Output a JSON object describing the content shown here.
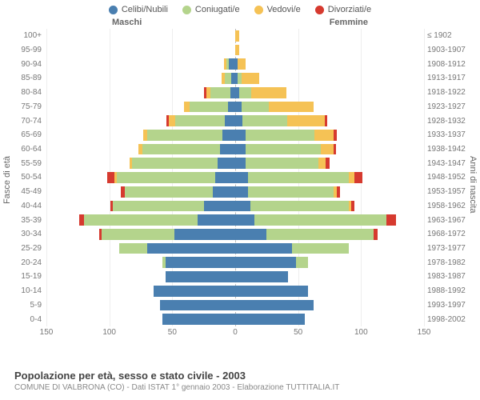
{
  "chart": {
    "type": "population-pyramid",
    "title": "Popolazione per età, sesso e stato civile - 2003",
    "subtitle": "COMUNE DI VALBRONA (CO) - Dati ISTAT 1° gennaio 2003 - Elaborazione TUTTITALIA.IT",
    "legend": [
      {
        "label": "Celibi/Nubili",
        "color": "#4a7fb0"
      },
      {
        "label": "Coniugati/e",
        "color": "#b4d48c"
      },
      {
        "label": "Vedovi/e",
        "color": "#f5c255"
      },
      {
        "label": "Divorziati/e",
        "color": "#d63a2f"
      }
    ],
    "gender_labels": {
      "male": "Maschi",
      "female": "Femmine"
    },
    "y_left_title": "Fasce di età",
    "y_right_title": "Anni di nascita",
    "x_max": 150,
    "x_ticks": [
      150,
      100,
      50,
      0,
      50,
      100,
      150
    ],
    "grid_positions_abs": [
      150,
      100,
      50,
      50,
      100,
      150
    ],
    "background_color": "#ffffff",
    "grid_color": "#eeeeee",
    "axis_text_color": "#777777",
    "title_fontsize": 13,
    "label_fontsize": 10,
    "rows": [
      {
        "age": "100+",
        "birth": "≤ 1902",
        "male": {
          "c": 0,
          "g": 0,
          "v": 0,
          "d": 0
        },
        "female": {
          "c": 0,
          "g": 0,
          "v": 3,
          "d": 0
        }
      },
      {
        "age": "95-99",
        "birth": "1903-1907",
        "male": {
          "c": 0,
          "g": 0,
          "v": 0,
          "d": 0
        },
        "female": {
          "c": 0,
          "g": 0,
          "v": 3,
          "d": 0
        }
      },
      {
        "age": "90-94",
        "birth": "1908-1912",
        "male": {
          "c": 5,
          "g": 2,
          "v": 2,
          "d": 0
        },
        "female": {
          "c": 2,
          "g": 0,
          "v": 6,
          "d": 0
        }
      },
      {
        "age": "85-89",
        "birth": "1913-1917",
        "male": {
          "c": 3,
          "g": 5,
          "v": 3,
          "d": 0
        },
        "female": {
          "c": 2,
          "g": 3,
          "v": 14,
          "d": 0
        }
      },
      {
        "age": "80-84",
        "birth": "1918-1922",
        "male": {
          "c": 4,
          "g": 16,
          "v": 3,
          "d": 2
        },
        "female": {
          "c": 3,
          "g": 10,
          "v": 28,
          "d": 0
        }
      },
      {
        "age": "75-79",
        "birth": "1923-1927",
        "male": {
          "c": 6,
          "g": 30,
          "v": 5,
          "d": 0
        },
        "female": {
          "c": 5,
          "g": 22,
          "v": 35,
          "d": 0
        }
      },
      {
        "age": "70-74",
        "birth": "1928-1932",
        "male": {
          "c": 8,
          "g": 40,
          "v": 5,
          "d": 2
        },
        "female": {
          "c": 6,
          "g": 35,
          "v": 30,
          "d": 2
        }
      },
      {
        "age": "65-69",
        "birth": "1933-1937",
        "male": {
          "c": 10,
          "g": 60,
          "v": 3,
          "d": 0
        },
        "female": {
          "c": 8,
          "g": 55,
          "v": 15,
          "d": 3
        }
      },
      {
        "age": "60-64",
        "birth": "1938-1942",
        "male": {
          "c": 12,
          "g": 62,
          "v": 3,
          "d": 0
        },
        "female": {
          "c": 8,
          "g": 60,
          "v": 10,
          "d": 2
        }
      },
      {
        "age": "55-59",
        "birth": "1943-1947",
        "male": {
          "c": 14,
          "g": 68,
          "v": 2,
          "d": 0
        },
        "female": {
          "c": 8,
          "g": 58,
          "v": 6,
          "d": 3
        }
      },
      {
        "age": "50-54",
        "birth": "1948-1952",
        "male": {
          "c": 16,
          "g": 78,
          "v": 2,
          "d": 6
        },
        "female": {
          "c": 10,
          "g": 80,
          "v": 5,
          "d": 6
        }
      },
      {
        "age": "45-49",
        "birth": "1953-1957",
        "male": {
          "c": 18,
          "g": 70,
          "v": 0,
          "d": 3
        },
        "female": {
          "c": 10,
          "g": 68,
          "v": 3,
          "d": 2
        }
      },
      {
        "age": "40-44",
        "birth": "1958-1962",
        "male": {
          "c": 25,
          "g": 72,
          "v": 0,
          "d": 2
        },
        "female": {
          "c": 12,
          "g": 78,
          "v": 2,
          "d": 3
        }
      },
      {
        "age": "35-39",
        "birth": "1963-1967",
        "male": {
          "c": 30,
          "g": 90,
          "v": 0,
          "d": 4
        },
        "female": {
          "c": 15,
          "g": 105,
          "v": 0,
          "d": 8
        }
      },
      {
        "age": "30-34",
        "birth": "1968-1972",
        "male": {
          "c": 48,
          "g": 58,
          "v": 0,
          "d": 2
        },
        "female": {
          "c": 25,
          "g": 85,
          "v": 0,
          "d": 3
        }
      },
      {
        "age": "25-29",
        "birth": "1973-1977",
        "male": {
          "c": 70,
          "g": 22,
          "v": 0,
          "d": 0
        },
        "female": {
          "c": 45,
          "g": 45,
          "v": 0,
          "d": 0
        }
      },
      {
        "age": "20-24",
        "birth": "1978-1982",
        "male": {
          "c": 55,
          "g": 3,
          "v": 0,
          "d": 0
        },
        "female": {
          "c": 48,
          "g": 10,
          "v": 0,
          "d": 0
        }
      },
      {
        "age": "15-19",
        "birth": "1983-1987",
        "male": {
          "c": 55,
          "g": 0,
          "v": 0,
          "d": 0
        },
        "female": {
          "c": 42,
          "g": 0,
          "v": 0,
          "d": 0
        }
      },
      {
        "age": "10-14",
        "birth": "1988-1992",
        "male": {
          "c": 65,
          "g": 0,
          "v": 0,
          "d": 0
        },
        "female": {
          "c": 58,
          "g": 0,
          "v": 0,
          "d": 0
        }
      },
      {
        "age": "5-9",
        "birth": "1993-1997",
        "male": {
          "c": 60,
          "g": 0,
          "v": 0,
          "d": 0
        },
        "female": {
          "c": 62,
          "g": 0,
          "v": 0,
          "d": 0
        }
      },
      {
        "age": "0-4",
        "birth": "1998-2002",
        "male": {
          "c": 58,
          "g": 0,
          "v": 0,
          "d": 0
        },
        "female": {
          "c": 55,
          "g": 0,
          "v": 0,
          "d": 0
        }
      }
    ]
  }
}
